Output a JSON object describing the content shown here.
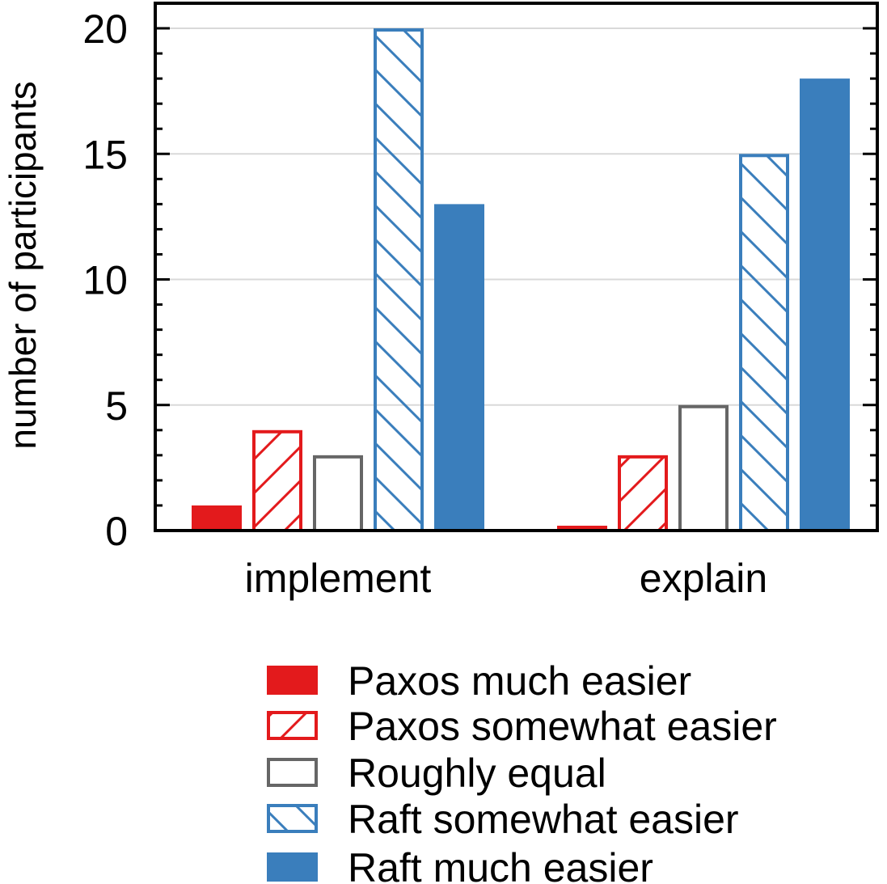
{
  "chart_data": {
    "type": "bar",
    "categories": [
      "implement",
      "explain"
    ],
    "series": [
      {
        "name": "Paxos much easier",
        "values": [
          1,
          0
        ],
        "color": "#e31a1c",
        "fill": "solid"
      },
      {
        "name": "Paxos somewhat easier",
        "values": [
          4,
          3
        ],
        "color": "#e31a1c",
        "fill": "hatch-up"
      },
      {
        "name": "Roughly equal",
        "values": [
          3,
          5
        ],
        "color": "#666666",
        "fill": "empty"
      },
      {
        "name": "Raft somewhat easier",
        "values": [
          20,
          15
        ],
        "color": "#3a7ebc",
        "fill": "hatch-down"
      },
      {
        "name": "Raft much easier",
        "values": [
          13,
          18
        ],
        "color": "#3a7ebc",
        "fill": "solid"
      }
    ],
    "ylabel": "number of participants",
    "xlabel": "",
    "ylim": [
      0,
      21
    ],
    "yticks": [
      0,
      5,
      10,
      15,
      20
    ],
    "grid": true,
    "legend_position": "bottom"
  }
}
